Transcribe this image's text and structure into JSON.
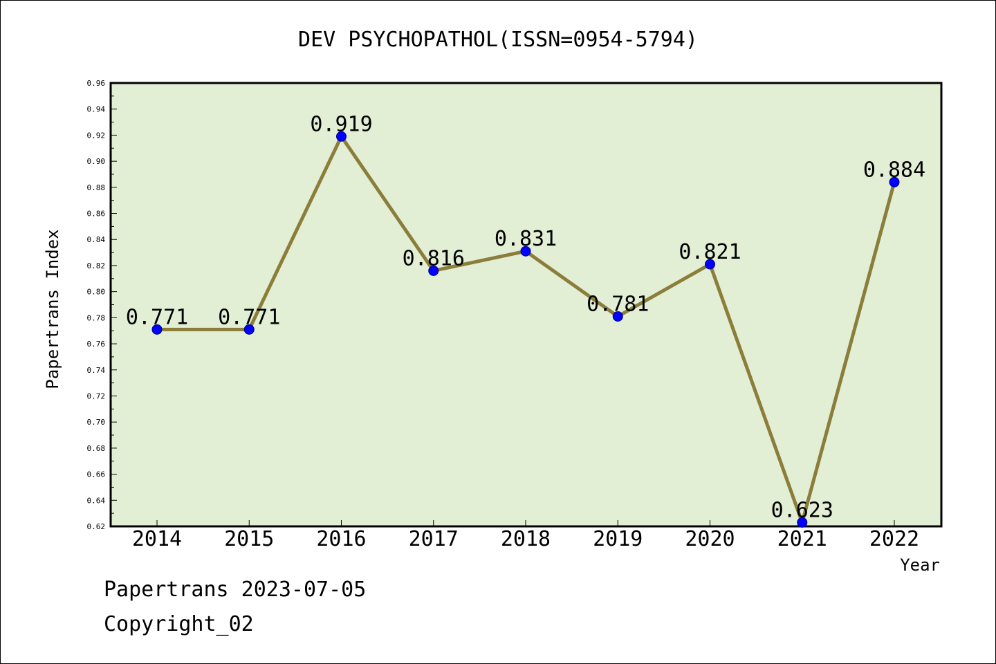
{
  "chart_data": {
    "type": "line",
    "title": "DEV PSYCHOPATHOL(ISSN=0954-5794)",
    "xlabel": "Year",
    "ylabel": "Papertrans Index",
    "categories": [
      "2014",
      "2015",
      "2016",
      "2017",
      "2018",
      "2019",
      "2020",
      "2021",
      "2022"
    ],
    "series": [
      {
        "values": [
          0.771,
          0.771,
          0.919,
          0.816,
          0.831,
          0.781,
          0.821,
          0.623,
          0.884
        ],
        "labels": [
          "0.771",
          "0.771",
          "0.919",
          "0.816",
          "0.831",
          "0.781",
          "0.821",
          "0.623",
          "0.884"
        ]
      }
    ],
    "ylim": [
      0.62,
      0.96
    ],
    "yticks": [
      "0.62",
      "0.64",
      "0.66",
      "0.68",
      "0.70",
      "0.72",
      "0.74",
      "0.76",
      "0.78",
      "0.80",
      "0.82",
      "0.84",
      "0.86",
      "0.88",
      "0.90",
      "0.92",
      "0.94",
      "0.96"
    ],
    "grid": false,
    "colors": {
      "plot_bg": "#e2efd5",
      "line": "#8b7d3a",
      "marker": "#0000ff"
    }
  },
  "footer": {
    "line1": "Papertrans 2023-07-05",
    "line2": "Copyright_02"
  }
}
